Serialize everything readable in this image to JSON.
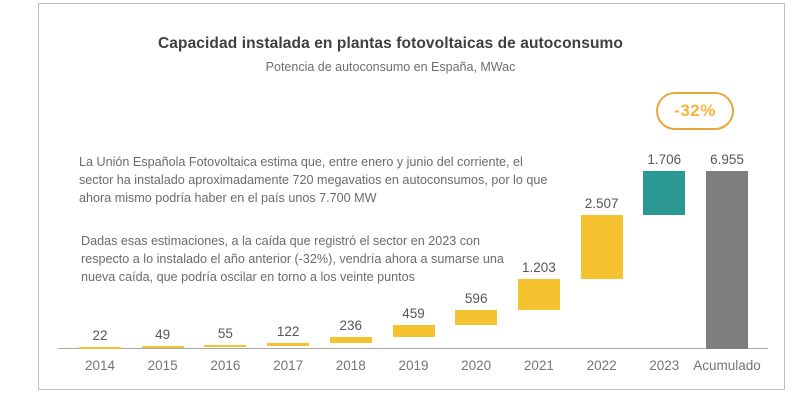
{
  "header": {
    "title": "Capacidad instalada en plantas fotovoltaicas de autoconsumo",
    "subtitle": "Potencia de autoconsumo en España, MWac"
  },
  "badge": {
    "label": "-32%"
  },
  "annotations": {
    "paragraph1": "La Unión Española Fotovoltaica estima que, entre enero y junio del corriente, el sector ha instalado aproximadamente 720 megavatios en autoconsumos, por lo que ahora mismo podría haber en el país unos 7.700 MW",
    "paragraph2": "Dadas esas estimaciones, a la caída que registró el sector en 2023 con respecto a lo instalado el año anterior (-32%), vendría ahora a sumarse una nueva caída, que podría oscilar en torno a los veinte puntos"
  },
  "colors": {
    "bar_yellow": "#f5c32f",
    "bar_teal": "#2b9894",
    "bar_gray": "#7e7e7e",
    "badge_border": "#e8a63c",
    "badge_text": "#f3b43c",
    "axis_line": "#a9a9a9"
  },
  "chart_data": {
    "type": "bar",
    "subtype": "waterfall",
    "title": "Capacidad instalada en plantas fotovoltaicas de autoconsumo",
    "subtitle": "Potencia de autoconsumo en España, MWac",
    "unit": "MWac",
    "categories": [
      "2014",
      "2015",
      "2016",
      "2017",
      "2018",
      "2019",
      "2020",
      "2021",
      "2022",
      "2023",
      "Acumulado"
    ],
    "values": [
      22,
      49,
      55,
      122,
      236,
      459,
      596,
      1203,
      2507,
      1706,
      6955
    ],
    "value_labels": [
      "22",
      "49",
      "55",
      "122",
      "236",
      "459",
      "596",
      "1.203",
      "2.507",
      "1.706",
      "6.955"
    ],
    "cumulative_start": [
      0,
      22,
      71,
      126,
      248,
      484,
      943,
      1539,
      2742,
      5249,
      0
    ],
    "cumulative_end": [
      22,
      71,
      126,
      248,
      484,
      943,
      1539,
      2742,
      5249,
      6955,
      6955
    ],
    "bar_colors": [
      "#f5c32f",
      "#f5c32f",
      "#f5c32f",
      "#f5c32f",
      "#f5c32f",
      "#f5c32f",
      "#f5c32f",
      "#f5c32f",
      "#f5c32f",
      "#2b9894",
      "#7e7e7e"
    ],
    "annotation_2023_change": "-32%",
    "ylim": [
      0,
      6955
    ],
    "grid": false,
    "y_axis_visible": false,
    "legend": "none"
  }
}
